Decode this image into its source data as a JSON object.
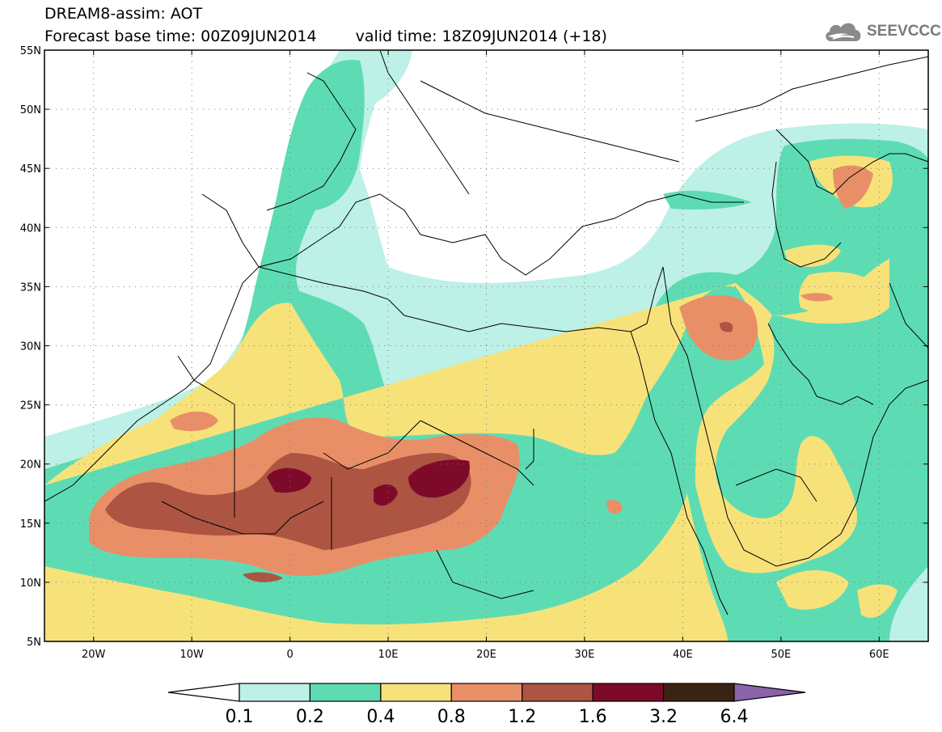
{
  "title": {
    "line1": "DREAM8-assim: AOT",
    "base_time": "Forecast base time: 00Z09JUN2014",
    "valid_time": "valid time: 18Z09JUN2014 (+18)"
  },
  "logo": {
    "text": "SEEVCCC",
    "icon": "cloud-icon"
  },
  "map": {
    "lon_range": [
      -25,
      65
    ],
    "lat_range": [
      5,
      55
    ],
    "lon_ticks": [
      {
        "lon": -20,
        "label": "20W"
      },
      {
        "lon": -10,
        "label": "10W"
      },
      {
        "lon": 0,
        "label": "0"
      },
      {
        "lon": 10,
        "label": "10E"
      },
      {
        "lon": 20,
        "label": "20E"
      },
      {
        "lon": 30,
        "label": "30E"
      },
      {
        "lon": 40,
        "label": "40E"
      },
      {
        "lon": 50,
        "label": "50E"
      },
      {
        "lon": 60,
        "label": "60E"
      }
    ],
    "lat_ticks": [
      {
        "lat": 55,
        "label": "55N"
      },
      {
        "lat": 50,
        "label": "50N"
      },
      {
        "lat": 45,
        "label": "45N"
      },
      {
        "lat": 40,
        "label": "40N"
      },
      {
        "lat": 35,
        "label": "35N"
      },
      {
        "lat": 30,
        "label": "30N"
      },
      {
        "lat": 25,
        "label": "25N"
      },
      {
        "lat": 20,
        "label": "20N"
      },
      {
        "lat": 15,
        "label": "15N"
      },
      {
        "lat": 10,
        "label": "10N"
      },
      {
        "lat": 5,
        "label": "5N"
      }
    ],
    "grid": true
  },
  "legend": {
    "colors": [
      "#ffffff",
      "#bdf0e6",
      "#5ddcb4",
      "#f7e27a",
      "#e98f68",
      "#ad5442",
      "#7e0a2a",
      "#3b2312",
      "#8b63a8"
    ],
    "labels": [
      "0.1",
      "0.2",
      "0.4",
      "0.8",
      "1.2",
      "1.6",
      "3.2",
      "6.4"
    ]
  }
}
